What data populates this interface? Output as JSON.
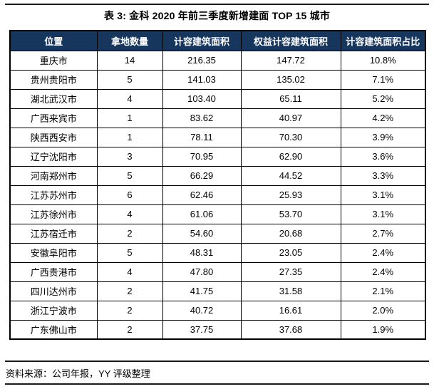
{
  "title": "表 3: 金科 2020 年前三季度新增建面 TOP 15 城市",
  "table": {
    "headers": [
      "位置",
      "拿地数量",
      "计容建筑面积",
      "权益计容建筑面积",
      "计容建筑面积占比"
    ],
    "rows": [
      [
        "重庆市",
        "14",
        "216.35",
        "147.72",
        "10.8%"
      ],
      [
        "贵州贵阳市",
        "5",
        "141.03",
        "135.02",
        "7.1%"
      ],
      [
        "湖北武汉市",
        "4",
        "103.40",
        "65.11",
        "5.2%"
      ],
      [
        "广西来宾市",
        "1",
        "83.62",
        "40.97",
        "4.2%"
      ],
      [
        "陕西西安市",
        "1",
        "78.11",
        "70.30",
        "3.9%"
      ],
      [
        "辽宁沈阳市",
        "3",
        "70.95",
        "62.90",
        "3.6%"
      ],
      [
        "河南郑州市",
        "5",
        "66.29",
        "44.52",
        "3.3%"
      ],
      [
        "江苏苏州市",
        "6",
        "62.46",
        "25.93",
        "3.1%"
      ],
      [
        "江苏徐州市",
        "4",
        "61.06",
        "53.70",
        "3.1%"
      ],
      [
        "江苏宿迁市",
        "2",
        "54.60",
        "20.68",
        "2.7%"
      ],
      [
        "安徽阜阳市",
        "5",
        "48.31",
        "23.05",
        "2.4%"
      ],
      [
        "广西贵港市",
        "4",
        "47.80",
        "27.35",
        "2.4%"
      ],
      [
        "四川达州市",
        "2",
        "41.75",
        "31.58",
        "2.1%"
      ],
      [
        "浙江宁波市",
        "2",
        "40.72",
        "16.61",
        "2.0%"
      ],
      [
        "广东佛山市",
        "2",
        "37.75",
        "37.68",
        "1.9%"
      ]
    ]
  },
  "footer": {
    "source_note": "资料来源：公司年报，YY 评级整理"
  },
  "colors": {
    "header_bg": "#17365d",
    "header_text": "#ffffff",
    "border": "#000000",
    "rule": "#1a1a1a"
  }
}
